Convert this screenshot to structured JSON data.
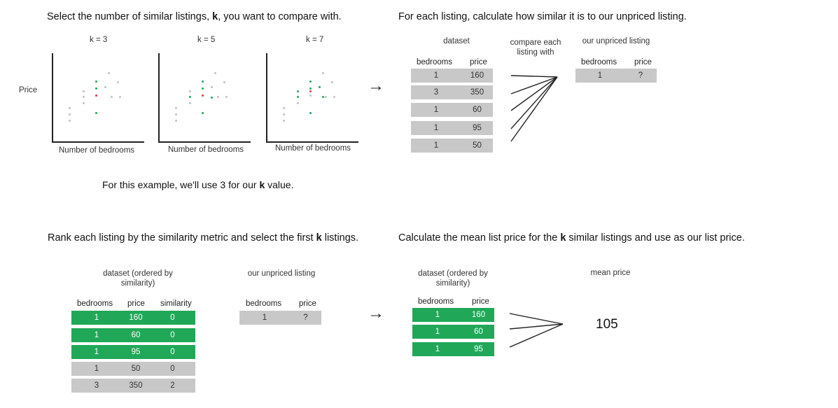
{
  "panel1": {
    "heading_pre": "Select the number of similar listings,",
    "heading_k": "k",
    "heading_post": ", you want to compare with.",
    "y_label": "Price",
    "plots": [
      {
        "title": "k = 3",
        "xlabel": "Number of bedrooms"
      },
      {
        "title": "k = 5",
        "xlabel": "Number of bedrooms"
      },
      {
        "title": "k = 7",
        "xlabel": "Number of bedrooms"
      }
    ],
    "note_pre": "For this example, we'll use 3 for our",
    "note_k": "k",
    "note_post": "value."
  },
  "panel2": {
    "heading": "For each listing, calculate how similar it is to our unpriced listing.",
    "dataset_label": "dataset",
    "compare_label": "compare each listing with",
    "unpriced_label": "our unpriced listing",
    "col_bedrooms": "bedrooms",
    "col_price": "price",
    "rows": [
      {
        "bedrooms": "1",
        "price": "160"
      },
      {
        "bedrooms": "3",
        "price": "350"
      },
      {
        "bedrooms": "1",
        "price": "60"
      },
      {
        "bedrooms": "1",
        "price": "95"
      },
      {
        "bedrooms": "1",
        "price": "50"
      }
    ],
    "unpriced": {
      "bedrooms": "1",
      "price": "?"
    }
  },
  "panel3": {
    "heading_pre": "Rank each listing by the similarity metric and select the first",
    "heading_k": "k",
    "heading_post": "listings.",
    "dataset_label": "dataset (ordered by similarity)",
    "unpriced_label": "our unpriced listing",
    "col_bedrooms": "bedrooms",
    "col_price": "price",
    "col_similarity": "similarity",
    "rows": [
      {
        "bedrooms": "1",
        "price": "160",
        "similarity": "0",
        "selected": true
      },
      {
        "bedrooms": "1",
        "price": "60",
        "similarity": "0",
        "selected": true
      },
      {
        "bedrooms": "1",
        "price": "95",
        "similarity": "0",
        "selected": true
      },
      {
        "bedrooms": "1",
        "price": "50",
        "similarity": "0",
        "selected": false
      },
      {
        "bedrooms": "3",
        "price": "350",
        "similarity": "2",
        "selected": false
      }
    ],
    "unpriced": {
      "bedrooms": "1",
      "price": "?"
    }
  },
  "panel4": {
    "heading_pre": "Calculate the mean list price for the",
    "heading_k": "k",
    "heading_post": "similar listings and use as our list price.",
    "dataset_label": "dataset (ordered by similarity)",
    "mean_label": "mean price",
    "col_bedrooms": "bedrooms",
    "col_price": "price",
    "rows": [
      {
        "bedrooms": "1",
        "price": "160"
      },
      {
        "bedrooms": "1",
        "price": "60"
      },
      {
        "bedrooms": "1",
        "price": "95"
      }
    ],
    "mean_value": "105"
  },
  "arrows": {
    "glyph": "→"
  },
  "colors": {
    "gray": "#c8c8c8",
    "green": "#20a858",
    "red": "#e0393e",
    "dot_gray": "#c0c0c0"
  }
}
